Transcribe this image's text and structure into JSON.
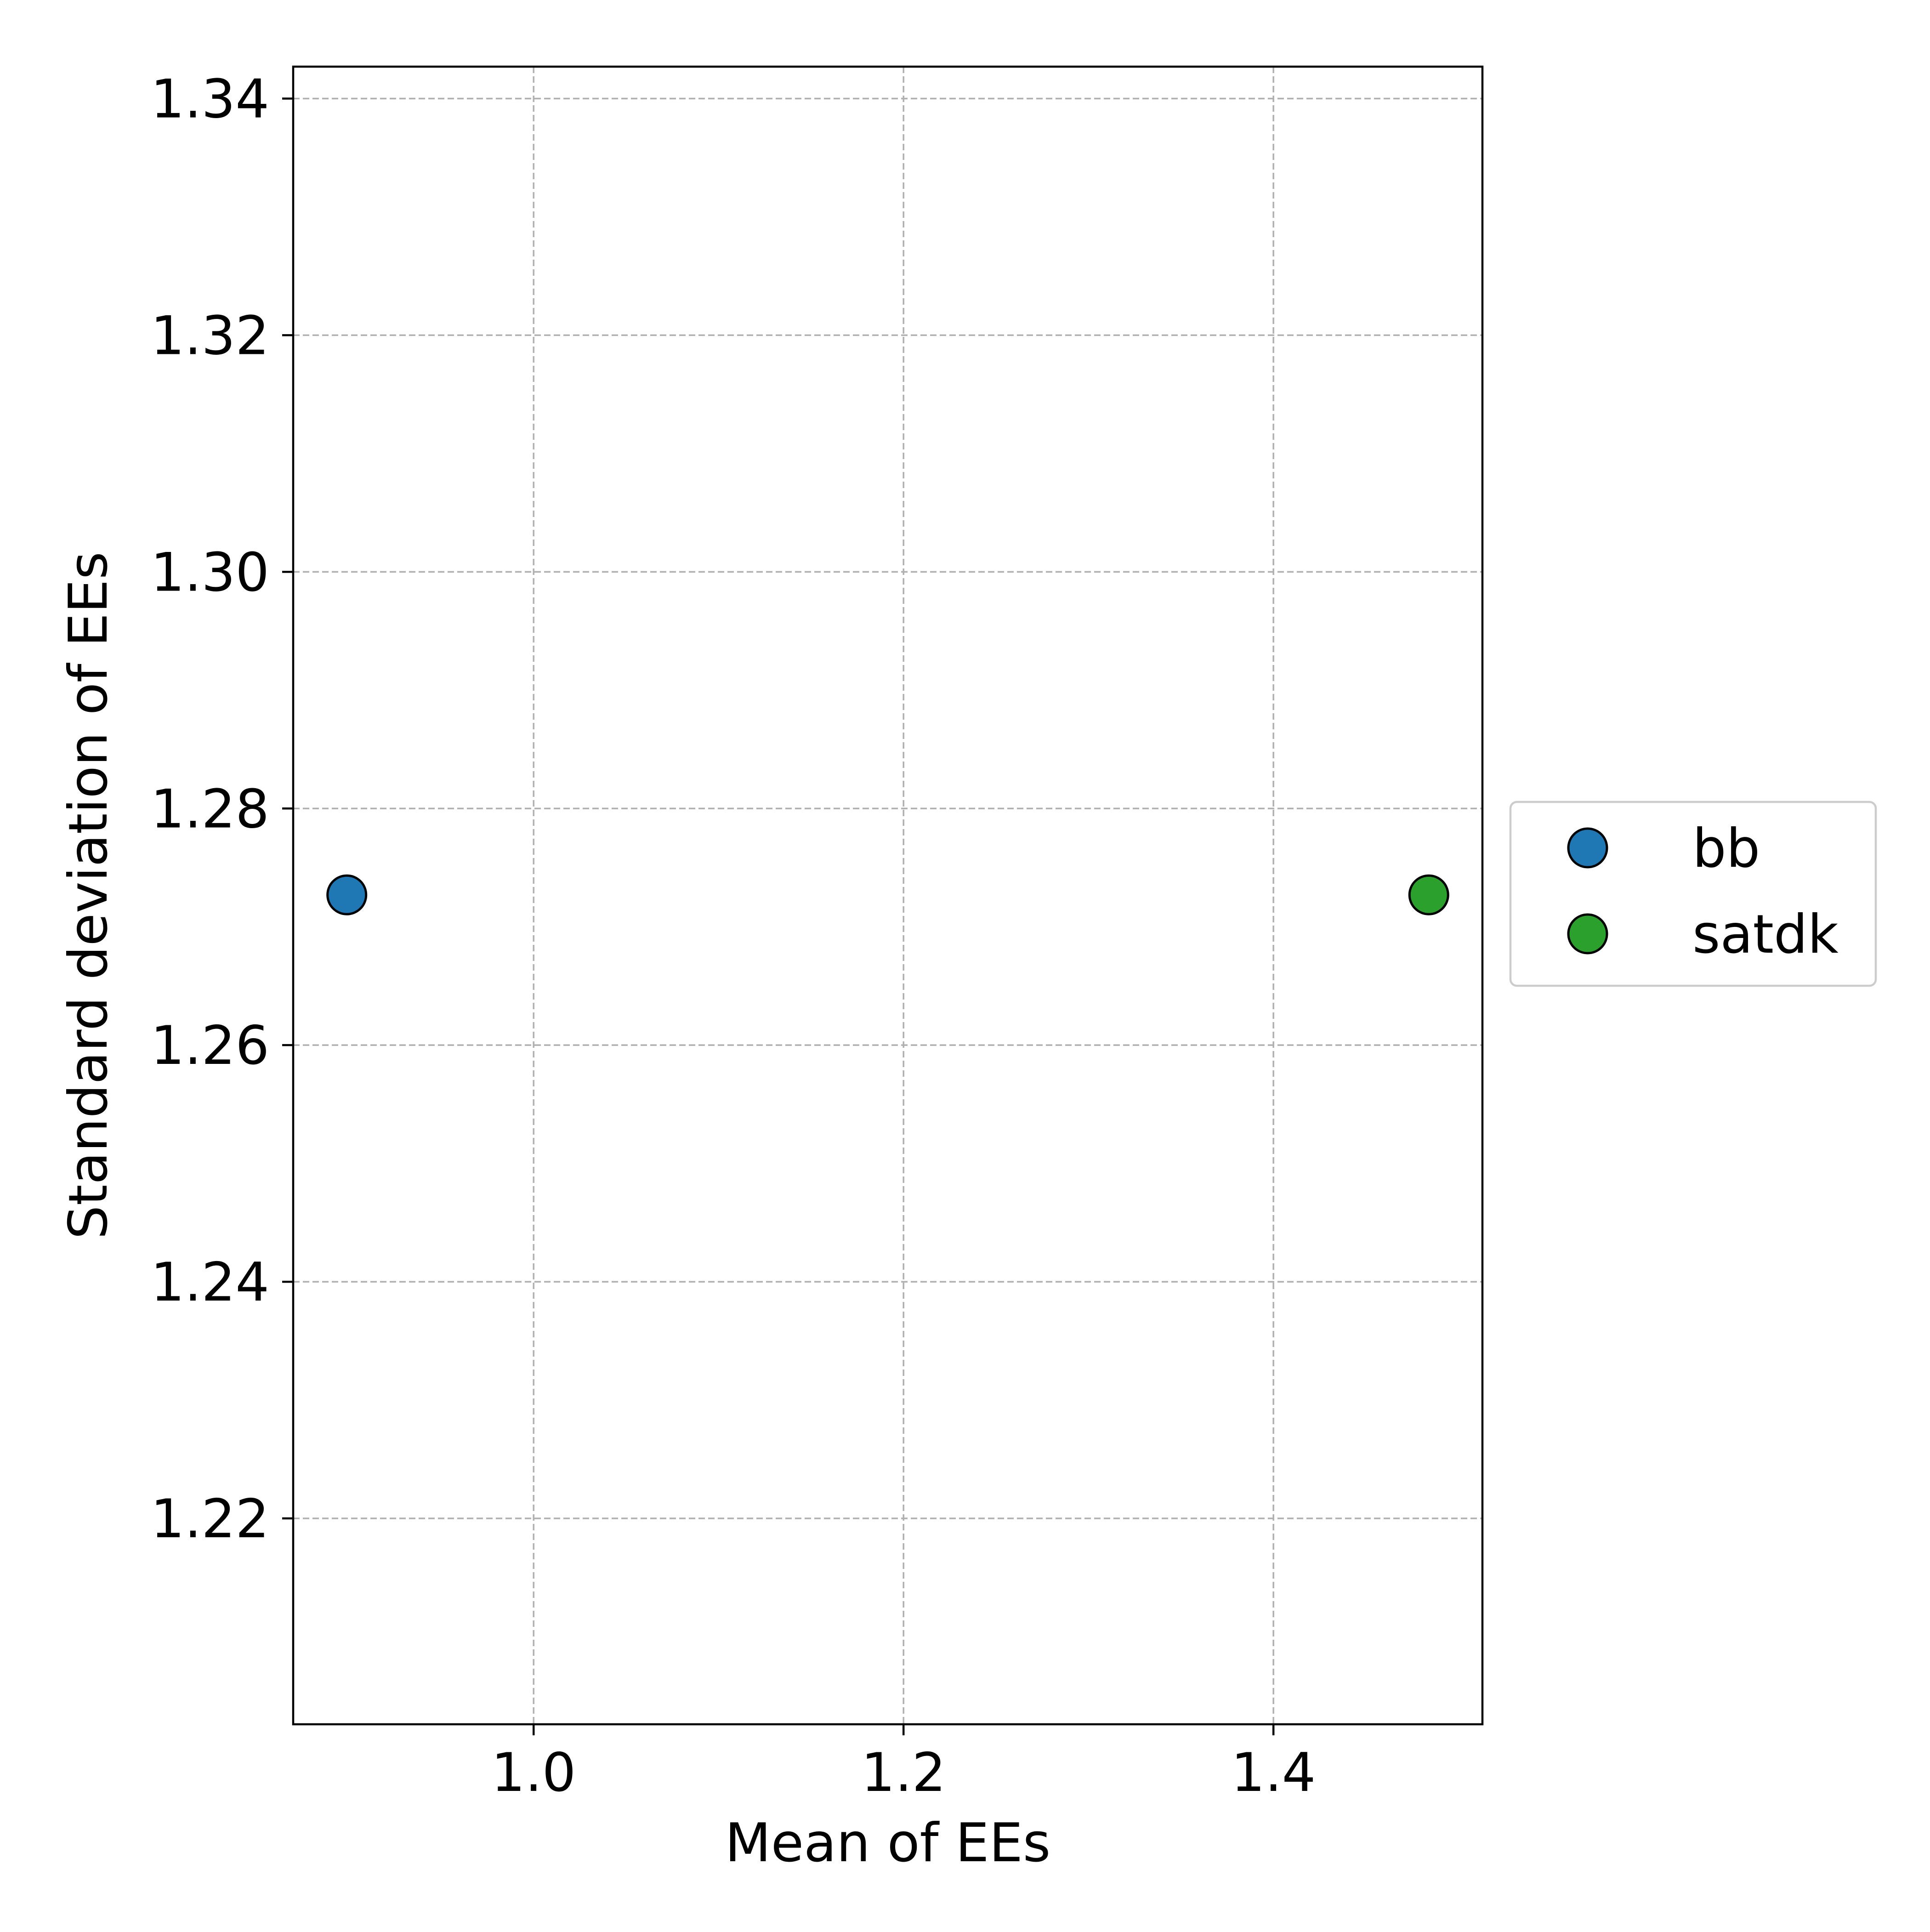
{
  "chart_data": {
    "type": "scatter",
    "title": "",
    "xlabel": "Mean of EEs",
    "ylabel": "Standard deviation of EEs",
    "xlim": [
      0.87,
      1.513
    ],
    "ylim": [
      1.2026,
      1.3427
    ],
    "x_ticks": [
      1.0,
      1.2,
      1.4
    ],
    "x_tick_labels": [
      "1.0",
      "1.2",
      "1.4"
    ],
    "y_ticks": [
      1.22,
      1.24,
      1.26,
      1.28,
      1.3,
      1.32,
      1.34
    ],
    "y_tick_labels": [
      "1.22",
      "1.24",
      "1.26",
      "1.28",
      "1.30",
      "1.32",
      "1.34"
    ],
    "grid": true,
    "grid_style": "dashed",
    "legend_position": "right-outside",
    "series": [
      {
        "name": "bb",
        "color": "#1f77b4",
        "points": [
          {
            "x": 0.899,
            "y": 1.2727
          }
        ]
      },
      {
        "name": "satdk",
        "color": "#2ca02c",
        "points": [
          {
            "x": 1.484,
            "y": 1.2727
          }
        ]
      }
    ]
  }
}
